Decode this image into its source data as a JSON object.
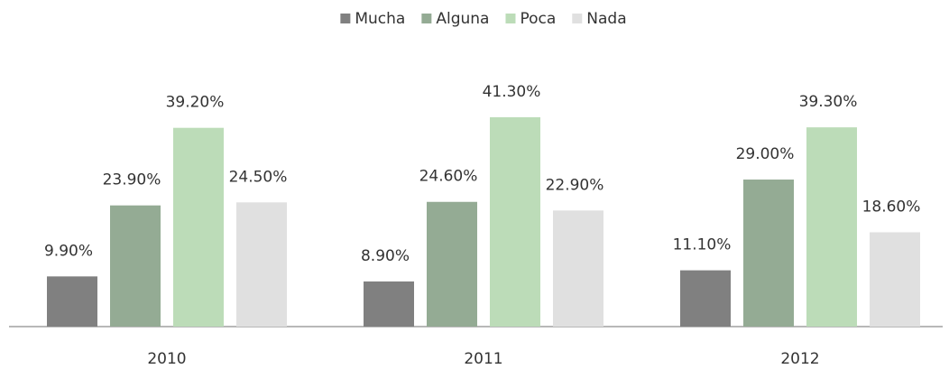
{
  "chart_data": {
    "type": "bar",
    "categories": [
      "2010",
      "2011",
      "2012"
    ],
    "series": [
      {
        "name": "Mucha",
        "color": "#808080",
        "values": [
          9.9,
          8.9,
          11.1
        ],
        "value_labels": [
          "9.90%",
          "8.90%",
          "11.10%"
        ]
      },
      {
        "name": "Alguna",
        "color": "#94ab94",
        "values": [
          23.9,
          24.6,
          29.0
        ],
        "value_labels": [
          "23.90%",
          "24.60%",
          "29.00%"
        ]
      },
      {
        "name": "Poca",
        "color": "#bcdcb8",
        "values": [
          39.2,
          41.3,
          39.3
        ],
        "value_labels": [
          "39.20%",
          "41.30%",
          "39.30%"
        ]
      },
      {
        "name": "Nada",
        "color": "#e0e0e0",
        "values": [
          24.5,
          22.9,
          18.6
        ],
        "value_labels": [
          "24.50%",
          "22.90%",
          "18.60%"
        ]
      }
    ],
    "legend": "top"
  }
}
